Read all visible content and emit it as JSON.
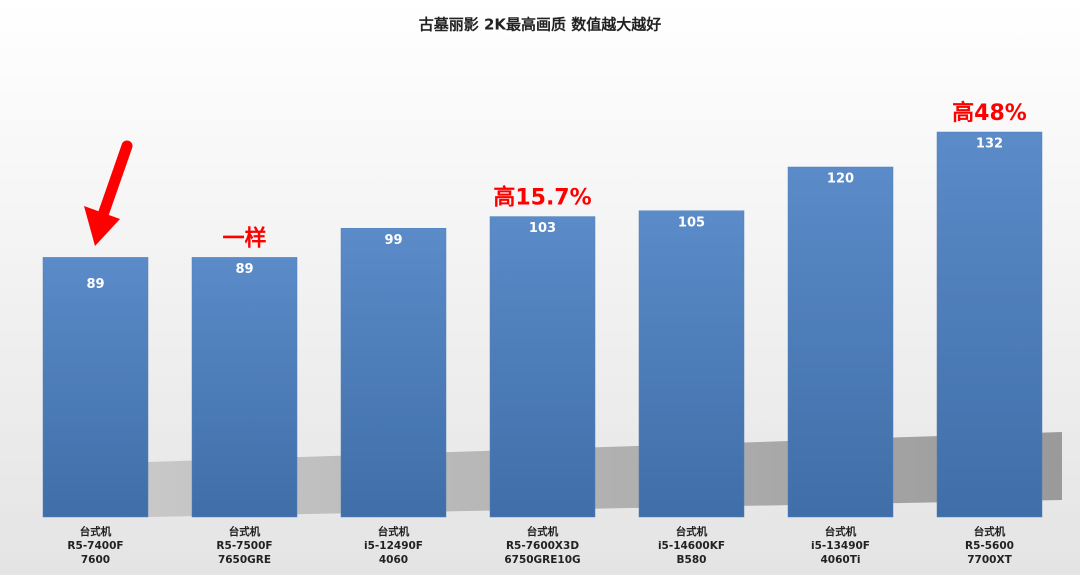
{
  "chart_data": {
    "type": "bar",
    "title": "古墓丽影 2K最高画质 数值越大越好",
    "categories": [
      [
        "台式机",
        "R5-7400F",
        "7600"
      ],
      [
        "台式机",
        "R5-7500F",
        "7650GRE"
      ],
      [
        "台式机",
        "i5-12490F",
        "4060"
      ],
      [
        "台式机",
        "R5-7600X3D",
        "6750GRE10G"
      ],
      [
        "台式机",
        "i5-14600KF",
        "B580"
      ],
      [
        "台式机",
        "i5-13490F",
        "4060Ti"
      ],
      [
        "台式机",
        "R5-5600",
        "7700XT"
      ]
    ],
    "values": [
      89,
      89,
      99,
      103,
      105,
      120,
      132
    ],
    "annotations": [
      null,
      "一样",
      null,
      "高15.7%",
      null,
      null,
      "高48%"
    ],
    "color": "#4f81bd"
  }
}
